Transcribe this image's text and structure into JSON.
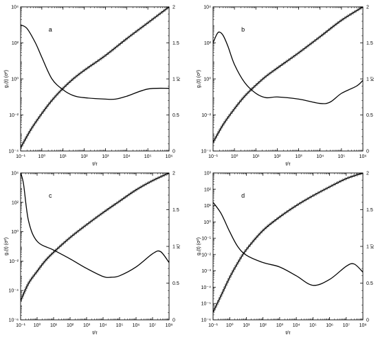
{
  "figure": {
    "panel_count": 4
  },
  "chart_data": [
    {
      "type": "line",
      "panel_label": "a",
      "xlabel": "t/τ",
      "ylabel": "g₁(t) (σ²)",
      "y2label": "Kᴵ",
      "x_scale": "log",
      "y_scale": "log",
      "xlim": [
        0.1,
        1000000
      ],
      "ylim": [
        0.0001,
        10000
      ],
      "y2lim": [
        0,
        2
      ],
      "x_ticks": [
        "10⁻¹",
        "10⁰",
        "10¹",
        "10²",
        "10³",
        "10⁴",
        "10⁵",
        "10⁶"
      ],
      "y_ticks": [
        "10⁻⁴",
        "10⁻²",
        "10⁰",
        "10²",
        "10⁴"
      ],
      "y2_ticks": [
        "0",
        "0.5",
        "1",
        "1.5",
        "2"
      ],
      "series": [
        {
          "role": "g1 (symbols + fit line, left axis)",
          "axis": "left",
          "markers": true,
          "x": [
            0.1,
            0.3,
            1,
            3,
            10,
            30,
            100,
            1000,
            10000,
            100000,
            1000000
          ],
          "y": [
            0.00015,
            0.0015,
            0.012,
            0.065,
            0.3,
            1,
            3,
            20,
            170,
            1300,
            10000
          ]
        },
        {
          "role": "K (right axis)",
          "axis": "right",
          "markers": false,
          "x": [
            0.1,
            0.2,
            0.5,
            1,
            3,
            10,
            30,
            100,
            1000,
            3000,
            10000,
            100000,
            1000000
          ],
          "y": [
            1.75,
            1.7,
            1.5,
            1.3,
            1.0,
            0.85,
            0.77,
            0.74,
            0.72,
            0.72,
            0.76,
            0.86,
            0.87
          ]
        }
      ]
    },
    {
      "type": "line",
      "panel_label": "b",
      "xlabel": "t/τ",
      "ylabel": "g₁(t) (σ²)",
      "y2label": "Kᴵ",
      "x_scale": "log",
      "y_scale": "log",
      "xlim": [
        0.1,
        1000000
      ],
      "ylim": [
        0.0001,
        10000
      ],
      "y2lim": [
        0,
        2
      ],
      "x_ticks": [
        "10⁻¹",
        "10⁰",
        "10¹",
        "10²",
        "10³",
        "10⁴",
        "10⁵",
        "10⁶"
      ],
      "y_ticks": [
        "10⁻⁴",
        "10⁻²",
        "10⁰",
        "10²",
        "10⁴"
      ],
      "y2_ticks": [
        "0",
        "0.5",
        "1",
        "1.5",
        "2"
      ],
      "series": [
        {
          "role": "g1 (symbols + fit line, left axis)",
          "axis": "left",
          "markers": true,
          "x": [
            0.1,
            0.3,
            1,
            3,
            10,
            30,
            100,
            1000,
            10000,
            100000,
            1000000
          ],
          "y": [
            0.0003,
            0.003,
            0.022,
            0.11,
            0.45,
            1.4,
            4,
            28,
            220,
            1800,
            10000
          ]
        },
        {
          "role": "K (right axis)",
          "axis": "right",
          "markers": false,
          "x": [
            0.1,
            0.15,
            0.2,
            0.3,
            0.5,
            1,
            3,
            10,
            30,
            100,
            1000,
            10000,
            30000,
            100000,
            500000,
            1000000
          ],
          "y": [
            1.5,
            1.62,
            1.65,
            1.6,
            1.45,
            1.2,
            0.95,
            0.8,
            0.74,
            0.75,
            0.72,
            0.66,
            0.68,
            0.8,
            0.9,
            0.98
          ]
        }
      ]
    },
    {
      "type": "line",
      "panel_label": "c",
      "xlabel": "t/τ",
      "ylabel": "g₁(t) (σ²)",
      "y2label": "Kᴵ",
      "x_scale": "log",
      "y_scale": "log",
      "xlim": [
        0.1,
        100000000
      ],
      "ylim": [
        1e-06,
        10000
      ],
      "y2lim": [
        0,
        2
      ],
      "x_ticks": [
        "10⁻¹",
        "10⁰",
        "10¹",
        "10²",
        "10³",
        "10⁴",
        "10⁵",
        "10⁶",
        "10⁷",
        "10⁸"
      ],
      "y_ticks": [
        "10⁻⁶",
        "10⁻⁴",
        "10⁻²",
        "10⁰",
        "10²",
        "10⁴"
      ],
      "y2_ticks": [
        "0",
        "0.5",
        "1",
        "1.5",
        "2"
      ],
      "series": [
        {
          "role": "g1 (symbols + fit line, left axis)",
          "axis": "left",
          "markers": true,
          "x": [
            0.1,
            0.3,
            1,
            3,
            10,
            100,
            1000,
            10000,
            100000,
            1000000,
            10000000,
            100000000
          ],
          "y": [
            2e-05,
            0.0003,
            0.002,
            0.01,
            0.04,
            0.4,
            3,
            20,
            120,
            700,
            3000,
            10000
          ]
        },
        {
          "role": "K (right axis)",
          "axis": "right",
          "markers": false,
          "x": [
            0.1,
            0.15,
            0.3,
            1,
            10,
            100,
            1000,
            10000,
            30000,
            100000,
            1000000,
            10000000,
            30000000,
            100000000
          ],
          "y": [
            2.0,
            1.85,
            1.35,
            1.07,
            0.95,
            0.83,
            0.7,
            0.59,
            0.58,
            0.6,
            0.72,
            0.9,
            0.93,
            0.78
          ]
        }
      ]
    },
    {
      "type": "line",
      "panel_label": "d",
      "xlabel": "t/τ",
      "ylabel": "g₁(t) (σ²)",
      "y2label": "Kᴵ",
      "x_scale": "log",
      "y_scale": "log",
      "xlim": [
        0.1,
        100000000
      ],
      "ylim": [
        1e-06,
        1000
      ],
      "y2lim": [
        0,
        2
      ],
      "x_ticks": [
        "10⁻¹",
        "10⁰",
        "10¹",
        "10²",
        "10³",
        "10⁴",
        "10⁵",
        "10⁶",
        "10⁷",
        "10⁸"
      ],
      "y_ticks": [
        "10⁻⁶",
        "10⁻⁵",
        "10⁻⁴",
        "10⁻³",
        "10⁻²",
        "10⁻¹",
        "10⁰",
        "10¹",
        "10²",
        "10³"
      ],
      "y2_ticks": [
        "0",
        "0.5",
        "1",
        "1.5",
        "2"
      ],
      "series": [
        {
          "role": "g1 (symbols + fit line, left axis)",
          "axis": "left",
          "markers": true,
          "x": [
            0.1,
            0.3,
            1,
            3,
            10,
            100,
            1000,
            10000,
            100000,
            1000000,
            10000000,
            100000000
          ],
          "y": [
            3e-06,
            3e-05,
            0.0004,
            0.003,
            0.02,
            0.3,
            2,
            10,
            40,
            140,
            450,
            1000
          ]
        },
        {
          "role": "K (right axis)",
          "axis": "right",
          "markers": false,
          "x": [
            0.1,
            0.3,
            1,
            3,
            10,
            100,
            1000,
            10000,
            100000,
            1000000,
            10000000,
            30000000,
            100000000
          ],
          "y": [
            1.6,
            1.45,
            1.2,
            1.0,
            0.88,
            0.78,
            0.72,
            0.6,
            0.47,
            0.55,
            0.73,
            0.76,
            0.65
          ]
        }
      ]
    }
  ]
}
